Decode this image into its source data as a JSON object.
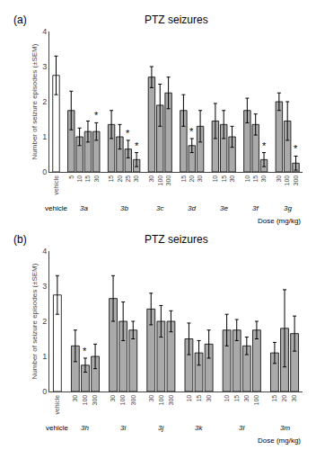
{
  "chart_data": [
    {
      "type": "bar",
      "title": "PTZ seizures",
      "label": "(a)",
      "ylabel": "Number of seizure episodes (±SEM)",
      "xlabel": "Dose (mg/kg)",
      "ylim": [
        0,
        4
      ],
      "yticks": [
        0,
        1,
        2,
        3,
        4
      ],
      "grid": false,
      "groups": [
        {
          "name": "vehicle",
          "categories": [
            "vehicle"
          ],
          "values": [
            2.75
          ],
          "errors": [
            0.55
          ],
          "color": "#ffffff",
          "annotations": [
            null
          ]
        },
        {
          "name": "3a",
          "categories": [
            "5",
            "10",
            "15",
            "30"
          ],
          "values": [
            1.75,
            1.0,
            1.15,
            1.15
          ],
          "errors": [
            0.55,
            0.25,
            0.3,
            0.25
          ],
          "color": "#aaaaaa",
          "annotations": [
            null,
            null,
            null,
            "*"
          ]
        },
        {
          "name": "3b",
          "categories": [
            "15",
            "20",
            "25",
            "30"
          ],
          "values": [
            1.35,
            1.0,
            0.65,
            0.35
          ],
          "errors": [
            0.4,
            0.35,
            0.25,
            0.2
          ],
          "color": "#aaaaaa",
          "annotations": [
            null,
            null,
            "*",
            "*"
          ]
        },
        {
          "name": "3c",
          "categories": [
            "30",
            "100",
            "300"
          ],
          "values": [
            2.7,
            1.9,
            2.25
          ],
          "errors": [
            0.3,
            0.6,
            0.45
          ],
          "color": "#aaaaaa",
          "annotations": [
            null,
            null,
            null
          ]
        },
        {
          "name": "3d",
          "categories": [
            "15",
            "20",
            "30"
          ],
          "values": [
            1.75,
            0.75,
            1.3
          ],
          "errors": [
            0.45,
            0.2,
            0.45
          ],
          "color": "#aaaaaa",
          "annotations": [
            null,
            "*",
            null
          ]
        },
        {
          "name": "3e",
          "categories": [
            "10",
            "15",
            "30"
          ],
          "values": [
            1.45,
            1.35,
            1.0
          ],
          "errors": [
            0.5,
            0.4,
            0.3
          ],
          "color": "#aaaaaa",
          "annotations": [
            null,
            null,
            null
          ]
        },
        {
          "name": "3f",
          "categories": [
            "10",
            "15",
            "30"
          ],
          "values": [
            1.75,
            1.35,
            0.35
          ],
          "errors": [
            0.35,
            0.3,
            0.2
          ],
          "color": "#aaaaaa",
          "annotations": [
            null,
            null,
            "*"
          ]
        },
        {
          "name": "3g",
          "categories": [
            "30",
            "100",
            "300"
          ],
          "values": [
            2.0,
            1.45,
            0.25
          ],
          "errors": [
            0.25,
            0.55,
            0.2
          ],
          "color": "#aaaaaa",
          "annotations": [
            null,
            null,
            "*"
          ]
        }
      ]
    },
    {
      "type": "bar",
      "title": "PTZ seizures",
      "label": "(b)",
      "ylabel": "Number of seizure episodes (±SEM)",
      "xlabel": "Dose (mg/kg)",
      "ylim": [
        0,
        4
      ],
      "yticks": [
        0,
        1,
        2,
        3,
        4
      ],
      "grid": false,
      "groups": [
        {
          "name": "vehicle",
          "categories": [
            "vehicle"
          ],
          "values": [
            2.75
          ],
          "errors": [
            0.55
          ],
          "color": "#ffffff",
          "annotations": [
            null
          ]
        },
        {
          "name": "3h",
          "categories": [
            "30",
            "100",
            "300"
          ],
          "values": [
            1.3,
            0.75,
            1.0
          ],
          "errors": [
            0.45,
            0.2,
            0.35
          ],
          "color": "#aaaaaa",
          "annotations": [
            null,
            "*",
            null
          ]
        },
        {
          "name": "3i",
          "categories": [
            "30",
            "100",
            "300"
          ],
          "values": [
            2.65,
            2.0,
            1.75
          ],
          "errors": [
            0.65,
            0.55,
            0.25
          ],
          "color": "#aaaaaa",
          "annotations": [
            null,
            null,
            null
          ]
        },
        {
          "name": "3j",
          "categories": [
            "30",
            "100",
            "300"
          ],
          "values": [
            2.35,
            2.0,
            2.0
          ],
          "errors": [
            0.45,
            0.45,
            0.3
          ],
          "color": "#aaaaaa",
          "annotations": [
            null,
            null,
            null
          ]
        },
        {
          "name": "3k",
          "categories": [
            "10",
            "15",
            "30"
          ],
          "values": [
            1.5,
            1.1,
            1.35
          ],
          "errors": [
            0.45,
            0.35,
            0.4
          ],
          "color": "#aaaaaa",
          "annotations": [
            null,
            null,
            null
          ]
        },
        {
          "name": "3l",
          "categories": [
            "10",
            "15",
            "30",
            "100"
          ],
          "values": [
            1.75,
            1.75,
            1.3,
            1.75
          ],
          "errors": [
            0.45,
            0.3,
            0.25,
            0.25
          ],
          "color": "#aaaaaa",
          "annotations": [
            null,
            null,
            null,
            null
          ]
        },
        {
          "name": "3m",
          "categories": [
            "15",
            "20",
            "30"
          ],
          "values": [
            1.1,
            1.8,
            1.65
          ],
          "errors": [
            0.3,
            1.1,
            0.5
          ],
          "color": "#aaaaaa",
          "annotations": [
            null,
            null,
            null
          ]
        }
      ]
    }
  ]
}
